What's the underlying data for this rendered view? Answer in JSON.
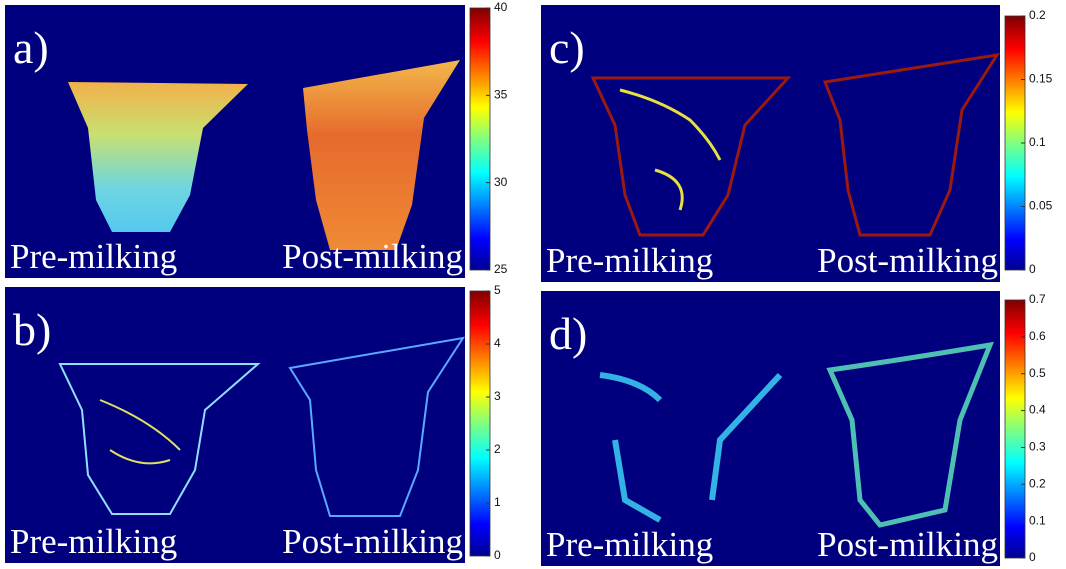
{
  "panels": [
    {
      "label": "a)",
      "captions": [
        "Pre-milking",
        "Post-milking"
      ],
      "colorbar": {
        "clim": [
          25,
          40
        ],
        "ticks": [
          25,
          30,
          35,
          40
        ]
      }
    },
    {
      "label": "b)",
      "captions": [
        "Pre-milking",
        "Post-milking"
      ],
      "colorbar": {
        "clim": [
          0,
          5
        ],
        "ticks": [
          0,
          1,
          2,
          3,
          4,
          5
        ]
      }
    },
    {
      "label": "c)",
      "captions": [
        "Pre-milking",
        "Post-milking"
      ],
      "colorbar": {
        "clim": [
          0,
          0.2
        ],
        "ticks": [
          0,
          0.05,
          0.1,
          0.15,
          0.2
        ]
      }
    },
    {
      "label": "d)",
      "captions": [
        "Pre-milking",
        "Post-milking"
      ],
      "colorbar": {
        "clim": [
          0,
          0.7
        ],
        "ticks": [
          0,
          0.1,
          0.2,
          0.3,
          0.4,
          0.5,
          0.6,
          0.7
        ]
      }
    }
  ]
}
